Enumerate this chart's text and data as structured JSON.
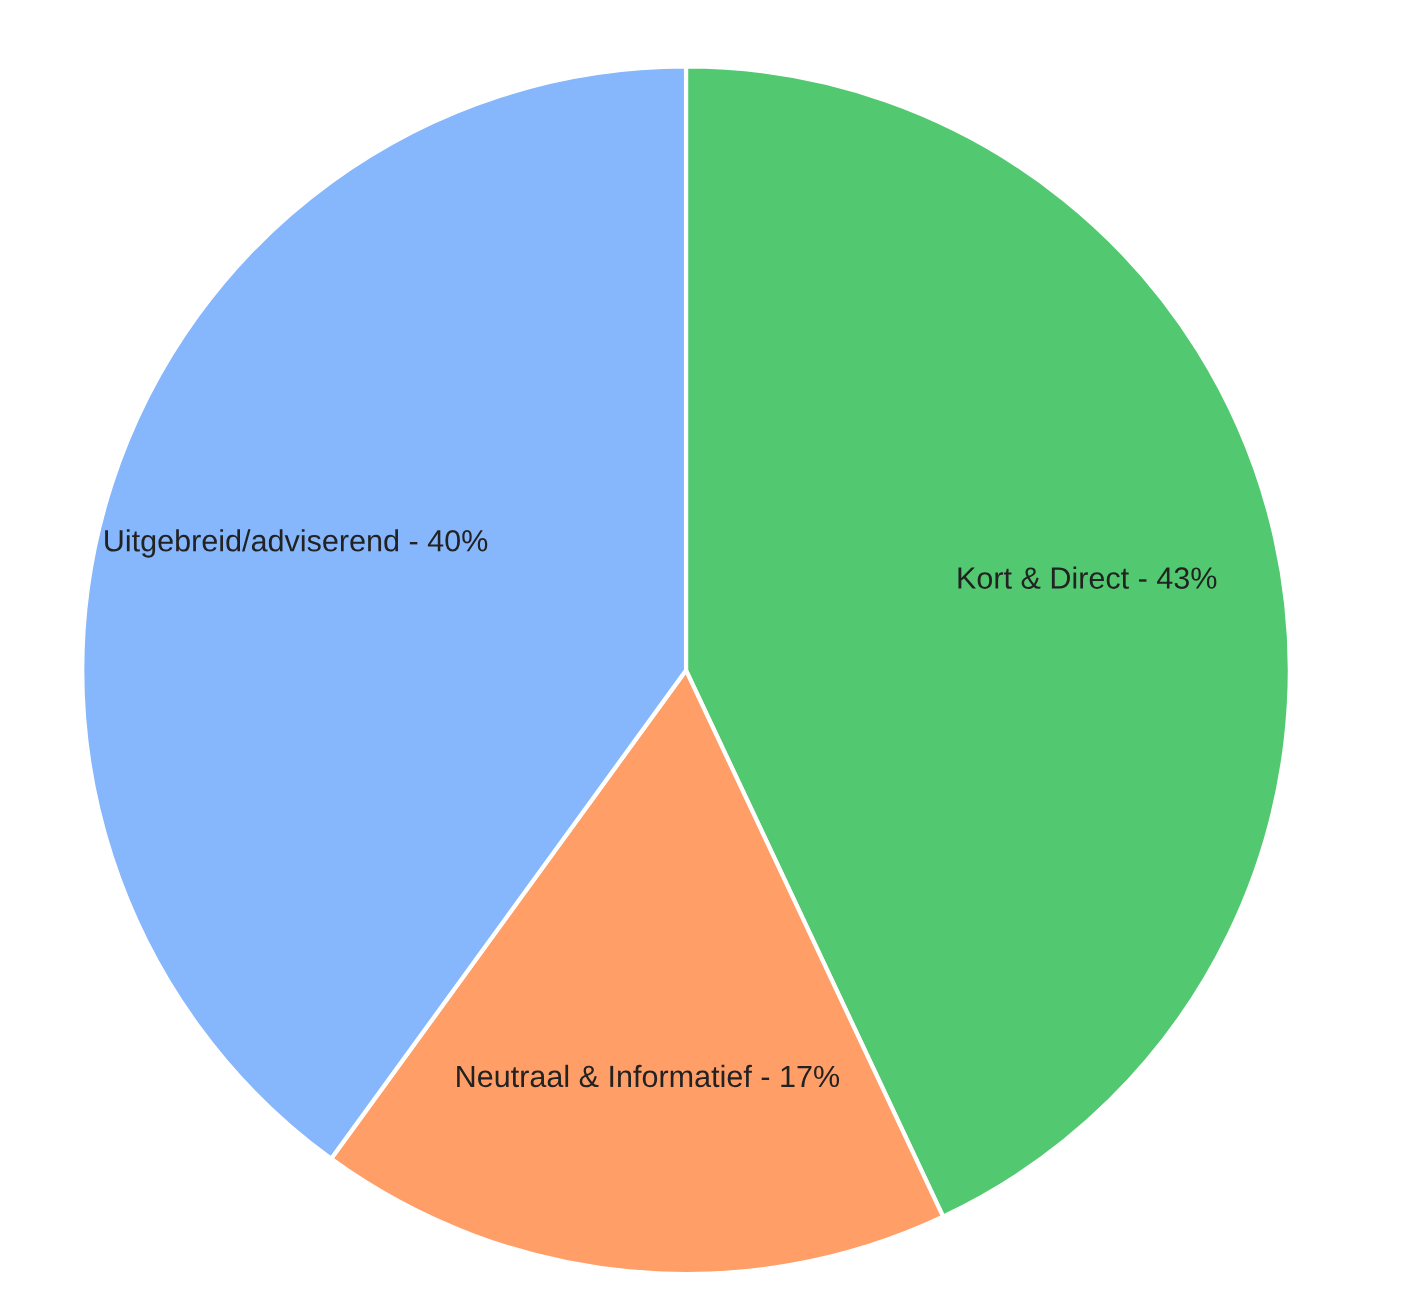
{
  "chart_data": {
    "type": "pie",
    "categories": [
      "Kort & Direct - 43%",
      "Neutraal & Informatief - 17%",
      "Uitgebreid/adviserend - 40%"
    ],
    "values": [
      43,
      17,
      40
    ],
    "colors": [
      "#52c971",
      "#ff9e67",
      "#86b6fc"
    ]
  }
}
